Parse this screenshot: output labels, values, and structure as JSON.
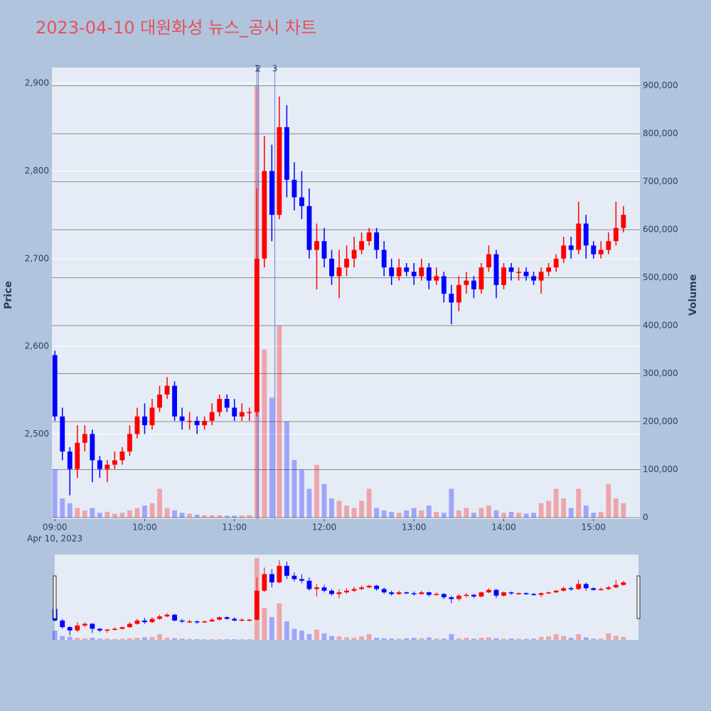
{
  "chart_data": {
    "type": "candlestick",
    "title": "2023-04-10 대원화성 뉴스_공시 차트",
    "date_label": "Apr 10, 2023",
    "y_title": "Price",
    "y2_title": "Volume",
    "increasing_color": "#ff0000",
    "decreasing_color": "#0000ff",
    "x": [
      "09:00",
      "09:05",
      "09:10",
      "09:15",
      "09:20",
      "09:25",
      "09:30",
      "09:35",
      "09:40",
      "09:45",
      "09:50",
      "09:55",
      "10:00",
      "10:05",
      "10:10",
      "10:15",
      "10:20",
      "10:25",
      "10:30",
      "10:35",
      "10:40",
      "10:45",
      "10:50",
      "10:55",
      "11:00",
      "11:05",
      "11:10",
      "11:15",
      "11:20",
      "11:25",
      "11:30",
      "11:35",
      "11:40",
      "11:45",
      "11:50",
      "11:55",
      "12:00",
      "12:05",
      "12:10",
      "12:15",
      "12:20",
      "12:25",
      "12:30",
      "12:35",
      "12:40",
      "12:45",
      "12:50",
      "12:55",
      "13:00",
      "13:05",
      "13:10",
      "13:15",
      "13:20",
      "13:25",
      "13:30",
      "13:35",
      "13:40",
      "13:45",
      "13:50",
      "13:55",
      "14:00",
      "14:05",
      "14:10",
      "14:15",
      "14:20",
      "14:25",
      "14:30",
      "14:35",
      "14:40",
      "14:45",
      "14:50",
      "14:55",
      "15:00",
      "15:05",
      "15:10",
      "15:15",
      "15:20"
    ],
    "open": [
      2590,
      2520,
      2480,
      2460,
      2490,
      2500,
      2470,
      2460,
      2465,
      2470,
      2480,
      2500,
      2520,
      2510,
      2530,
      2545,
      2555,
      2520,
      2515,
      2515,
      2510,
      2515,
      2525,
      2540,
      2530,
      2520,
      2525,
      2525,
      2700,
      2800,
      2750,
      2850,
      2790,
      2770,
      2760,
      2710,
      2720,
      2700,
      2680,
      2690,
      2700,
      2710,
      2720,
      2730,
      2710,
      2690,
      2680,
      2690,
      2685,
      2680,
      2690,
      2675,
      2680,
      2660,
      2650,
      2670,
      2675,
      2665,
      2690,
      2705,
      2670,
      2690,
      2685,
      2685,
      2680,
      2675,
      2685,
      2690,
      2700,
      2715,
      2710,
      2740,
      2715,
      2705,
      2710,
      2720,
      2735
    ],
    "high": [
      2595,
      2530,
      2485,
      2510,
      2510,
      2505,
      2475,
      2470,
      2480,
      2485,
      2510,
      2530,
      2535,
      2540,
      2555,
      2565,
      2560,
      2530,
      2525,
      2520,
      2520,
      2535,
      2545,
      2545,
      2540,
      2535,
      2530,
      2780,
      2840,
      2830,
      2885,
      2875,
      2810,
      2800,
      2780,
      2740,
      2735,
      2710,
      2710,
      2715,
      2725,
      2730,
      2735,
      2735,
      2720,
      2700,
      2700,
      2695,
      2695,
      2700,
      2695,
      2690,
      2685,
      2670,
      2680,
      2685,
      2680,
      2695,
      2715,
      2710,
      2695,
      2695,
      2690,
      2690,
      2685,
      2690,
      2695,
      2705,
      2725,
      2725,
      2765,
      2750,
      2720,
      2720,
      2730,
      2765,
      2760
    ],
    "low": [
      2515,
      2470,
      2430,
      2450,
      2480,
      2445,
      2450,
      2445,
      2460,
      2465,
      2475,
      2495,
      2500,
      2505,
      2525,
      2540,
      2515,
      2505,
      2505,
      2500,
      2505,
      2510,
      2520,
      2525,
      2515,
      2515,
      2515,
      2520,
      2690,
      2720,
      2745,
      2770,
      2755,
      2745,
      2700,
      2665,
      2690,
      2670,
      2655,
      2680,
      2690,
      2705,
      2715,
      2700,
      2680,
      2670,
      2675,
      2680,
      2670,
      2675,
      2665,
      2670,
      2650,
      2625,
      2640,
      2660,
      2655,
      2660,
      2685,
      2655,
      2665,
      2675,
      2675,
      2675,
      2670,
      2660,
      2680,
      2685,
      2695,
      2700,
      2705,
      2700,
      2700,
      2700,
      2705,
      2715,
      2730
    ],
    "close": [
      2520,
      2480,
      2460,
      2490,
      2500,
      2470,
      2460,
      2465,
      2470,
      2480,
      2500,
      2520,
      2510,
      2530,
      2545,
      2555,
      2520,
      2515,
      2515,
      2510,
      2515,
      2525,
      2540,
      2530,
      2520,
      2525,
      2525,
      2700,
      2800,
      2750,
      2850,
      2790,
      2770,
      2760,
      2710,
      2720,
      2700,
      2680,
      2690,
      2700,
      2710,
      2720,
      2730,
      2710,
      2690,
      2680,
      2690,
      2685,
      2680,
      2690,
      2675,
      2680,
      2660,
      2650,
      2670,
      2675,
      2665,
      2690,
      2705,
      2670,
      2690,
      2685,
      2685,
      2680,
      2675,
      2685,
      2690,
      2700,
      2715,
      2710,
      2740,
      2715,
      2705,
      2710,
      2720,
      2735,
      2750
    ],
    "volume": [
      100000,
      40000,
      30000,
      20000,
      15000,
      20000,
      10000,
      12000,
      8000,
      10000,
      15000,
      20000,
      25000,
      30000,
      60000,
      20000,
      15000,
      10000,
      8000,
      6000,
      5000,
      5000,
      5000,
      4000,
      4000,
      4000,
      5000,
      900000,
      350000,
      250000,
      400000,
      200000,
      120000,
      100000,
      60000,
      110000,
      70000,
      40000,
      35000,
      25000,
      20000,
      35000,
      60000,
      20000,
      15000,
      12000,
      10000,
      15000,
      20000,
      15000,
      25000,
      12000,
      10000,
      60000,
      15000,
      20000,
      10000,
      20000,
      25000,
      15000,
      10000,
      12000,
      10000,
      8000,
      10000,
      30000,
      35000,
      60000,
      40000,
      20000,
      60000,
      25000,
      10000,
      12000,
      70000,
      40000,
      30000
    ],
    "annotations": [
      {
        "x": "11:15",
        "text": "1"
      },
      {
        "x": "11:16",
        "text": "2"
      },
      {
        "x": "11:27",
        "text": "3"
      }
    ],
    "xlim": [
      "08:58",
      "15:31"
    ],
    "xticks": [
      "09:00",
      "10:00",
      "11:00",
      "12:00",
      "13:00",
      "14:00",
      "15:00"
    ],
    "ylim": [
      2403,
      2918
    ],
    "yticks": [
      {
        "value": 2500,
        "label": "2,500"
      },
      {
        "value": 2600,
        "label": "2,600"
      },
      {
        "value": 2700,
        "label": "2,700"
      },
      {
        "value": 2800,
        "label": "2,800"
      },
      {
        "value": 2900,
        "label": "2,900"
      }
    ],
    "y2lim": [
      -3000,
      938000
    ],
    "y2ticks": [
      0,
      {
        "value": 100000,
        "label": "100,000"
      },
      {
        "value": 200000,
        "label": "200,000"
      },
      {
        "value": 300000,
        "label": "300,000"
      },
      {
        "value": 400000,
        "label": "400,000"
      },
      {
        "value": 500000,
        "label": "500,000"
      },
      {
        "value": 600000,
        "label": "600,000"
      },
      {
        "value": 700000,
        "label": "700,000"
      },
      {
        "value": 800000,
        "label": "800,000"
      },
      {
        "value": 900000,
        "label": "900,000"
      }
    ],
    "grid": true,
    "range_slider": true
  }
}
